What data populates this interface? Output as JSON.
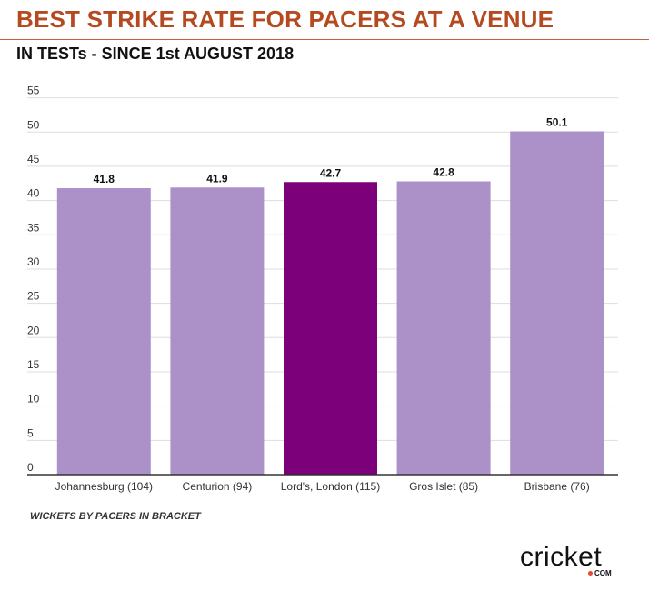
{
  "header": {
    "title": "BEST STRIKE RATE FOR PACERS AT A VENUE",
    "subtitle": "IN TESTs - SINCE 1st AUGUST 2018"
  },
  "footnote": "WICKETS BY PACERS IN BRACKET",
  "logo": {
    "word": "cricket",
    "suffix": "COM"
  },
  "colors": {
    "title": "#b54a20",
    "bar": "#ab91c8",
    "bar_highlight": "#7b0079",
    "grid": "#dddddd",
    "axis": "#333333"
  },
  "chart_data": {
    "type": "bar",
    "categories": [
      "Johannesburg (104)",
      "Centurion (94)",
      "Lord's, London (115)",
      "Gros Islet (85)",
      "Brisbane (76)"
    ],
    "values": [
      41.8,
      41.9,
      42.7,
      42.8,
      50.1
    ],
    "data_labels": [
      "41.8",
      "41.9",
      "42.7",
      "42.8",
      "50.1"
    ],
    "highlight_index": 2,
    "ylim": [
      0,
      55
    ],
    "yticks": [
      0,
      5,
      10,
      15,
      20,
      25,
      30,
      35,
      40,
      45,
      50,
      55
    ],
    "grid": true,
    "legend": "none"
  }
}
